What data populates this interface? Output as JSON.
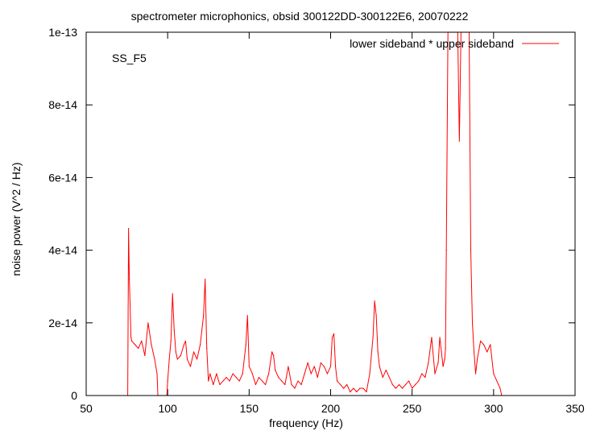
{
  "chart_data": {
    "type": "line",
    "title": "spectrometer microphonics, obsid 300122DD-300122E6, 20070222",
    "annotation": "SS_F5",
    "xlabel": "frequency (Hz)",
    "ylabel": "noise power (V^2 / Hz)",
    "xlim": [
      50,
      350
    ],
    "ylim": [
      0,
      1e-13
    ],
    "x_ticks": [
      50,
      100,
      150,
      200,
      250,
      300,
      350
    ],
    "x_tick_labels": [
      "50",
      "100",
      "150",
      "200",
      "250",
      "300",
      "350"
    ],
    "y_ticks": [
      0,
      2e-14,
      4e-14,
      6e-14,
      8e-14,
      1e-13
    ],
    "y_tick_labels": [
      "0",
      "2e-14",
      "4e-14",
      "6e-14",
      "8e-14",
      "1e-13"
    ],
    "legend_position": "top-right",
    "series": [
      {
        "name": "lower sideband * upper sideband",
        "color": "#ff0000",
        "x": [
          50,
          75.5,
          76,
          76.5,
          77.5,
          78,
          80,
          82,
          84,
          86,
          88,
          90,
          92,
          93.5,
          94,
          95,
          96,
          98,
          99.5,
          100,
          101,
          102,
          103,
          104,
          105,
          106,
          108,
          110,
          111,
          112,
          114,
          116,
          118,
          120,
          122,
          123,
          124,
          125,
          126,
          128,
          130,
          132,
          134,
          136,
          138,
          140,
          142,
          144,
          146,
          148,
          149,
          150,
          152,
          154,
          156,
          158,
          160,
          162,
          164,
          165,
          166,
          168,
          170,
          172,
          174,
          176,
          178,
          180,
          182,
          184,
          186,
          188,
          190,
          192,
          194,
          196,
          198,
          200,
          201,
          202,
          203,
          204,
          206,
          208,
          210,
          212,
          214,
          216,
          218,
          220,
          222,
          224,
          226,
          227,
          228,
          229,
          230,
          232,
          234,
          236,
          238,
          240,
          242,
          244,
          246,
          248,
          250,
          252,
          254,
          256,
          258,
          260,
          262,
          264,
          266,
          267,
          268,
          269,
          270,
          270.5,
          271,
          272,
          273,
          274,
          275,
          276,
          277,
          278,
          279,
          280,
          281,
          282,
          283,
          284,
          285,
          286,
          287,
          288,
          289,
          290,
          292,
          294,
          296,
          298,
          300,
          302,
          303,
          304,
          305,
          350
        ],
        "y": [
          0,
          0,
          4.6e-14,
          3.2e-14,
          1.6e-14,
          1.5e-14,
          1.4e-14,
          1.3e-14,
          1.5e-14,
          1.1e-14,
          2e-14,
          1.4e-14,
          1e-14,
          6e-15,
          0,
          0,
          0,
          0,
          0,
          4e-15,
          1e-14,
          1.5e-14,
          2.8e-14,
          1.8e-14,
          1.2e-14,
          1e-14,
          1.1e-14,
          1.4e-14,
          1.5e-14,
          1e-14,
          8e-15,
          1.2e-14,
          1e-14,
          1.4e-14,
          2.2e-14,
          3.2e-14,
          1.3e-14,
          4e-15,
          6e-15,
          3e-15,
          6e-15,
          3e-15,
          4e-15,
          5e-15,
          4e-15,
          6e-15,
          5e-15,
          4e-15,
          6e-15,
          1.4e-14,
          2.2e-14,
          8e-15,
          6e-15,
          3e-15,
          5e-15,
          4e-15,
          3e-15,
          6e-15,
          1.2e-14,
          1.1e-14,
          7e-15,
          5e-15,
          4e-15,
          3e-15,
          8e-15,
          3e-15,
          2e-15,
          4e-15,
          3e-15,
          6e-15,
          9e-15,
          6e-15,
          8e-15,
          5e-15,
          9e-15,
          8e-15,
          6e-15,
          8e-15,
          1.6e-14,
          1.7e-14,
          8e-15,
          4e-15,
          3e-15,
          2e-15,
          3e-15,
          1e-15,
          2e-15,
          1e-15,
          2e-15,
          2e-15,
          1e-15,
          6e-15,
          1.6e-14,
          2.6e-14,
          2.2e-14,
          1.2e-14,
          8e-15,
          5e-15,
          7e-15,
          5e-15,
          3e-15,
          2e-15,
          3e-15,
          2e-15,
          3e-15,
          4e-15,
          2e-15,
          3e-15,
          4e-15,
          6e-15,
          5e-15,
          9e-15,
          1.6e-14,
          6e-15,
          9e-15,
          1.6e-14,
          1.2e-14,
          8e-15,
          1e-14,
          1.3e-14,
          4e-14,
          1e-13,
          1e-13,
          1e-13,
          1e-13,
          1e-13,
          1e-13,
          1e-13,
          7e-14,
          1e-13,
          1e-13,
          1e-13,
          1e-13,
          1e-13,
          1e-13,
          4e-14,
          2e-14,
          1.2e-14,
          6e-15,
          1e-14,
          1.5e-14,
          1.4e-14,
          1.2e-14,
          1.4e-14,
          6e-15,
          4e-15,
          3e-15,
          2e-15,
          0,
          0
        ]
      }
    ]
  }
}
